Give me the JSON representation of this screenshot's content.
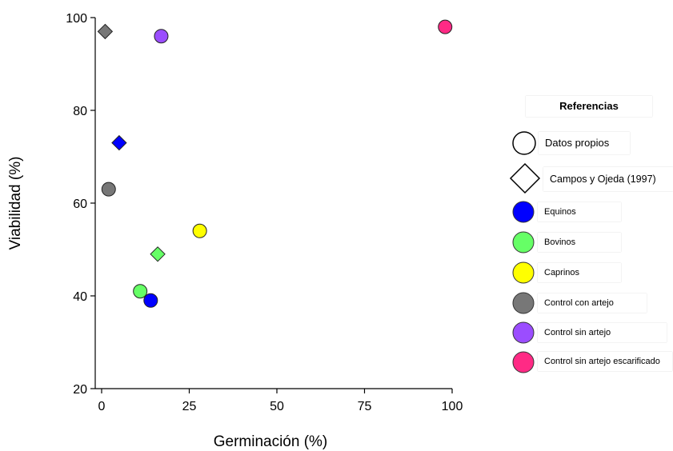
{
  "chart_data": {
    "type": "scatter",
    "xlabel": "Germinación (%)",
    "ylabel": "Viabilidad (%)",
    "xlim": [
      0,
      100
    ],
    "ylim": [
      20,
      100
    ],
    "xticks": [
      0,
      25,
      50,
      75,
      100
    ],
    "yticks": [
      20,
      40,
      60,
      80,
      100
    ],
    "grid": false,
    "legend_position": "right",
    "legend_title": "Referencias",
    "source_legend": [
      {
        "label": "Datos propios",
        "marker": "circle"
      },
      {
        "label": "Campos y Ojeda (1997)",
        "marker": "diamond"
      }
    ],
    "series": [
      {
        "name": "Equinos",
        "color": "#0000ff",
        "points": [
          {
            "x": 14,
            "y": 39,
            "marker": "circle"
          },
          {
            "x": 5,
            "y": 73,
            "marker": "diamond"
          }
        ]
      },
      {
        "name": "Bovinos",
        "color": "#66ff66",
        "points": [
          {
            "x": 11,
            "y": 41,
            "marker": "circle"
          },
          {
            "x": 16,
            "y": 49,
            "marker": "diamond"
          }
        ]
      },
      {
        "name": "Caprinos",
        "color": "#ffff00",
        "points": [
          {
            "x": 28,
            "y": 54,
            "marker": "circle"
          }
        ]
      },
      {
        "name": "Control con artejo",
        "color": "#777777",
        "points": [
          {
            "x": 2,
            "y": 63,
            "marker": "circle"
          },
          {
            "x": 1,
            "y": 97,
            "marker": "diamond"
          }
        ]
      },
      {
        "name": "Control sin artejo",
        "color": "#9b4dff",
        "points": [
          {
            "x": 17,
            "y": 96,
            "marker": "circle"
          }
        ]
      },
      {
        "name": "Control sin artejo escarificado",
        "color": "#ff2a85",
        "points": [
          {
            "x": 98,
            "y": 98,
            "marker": "circle"
          }
        ]
      }
    ]
  }
}
